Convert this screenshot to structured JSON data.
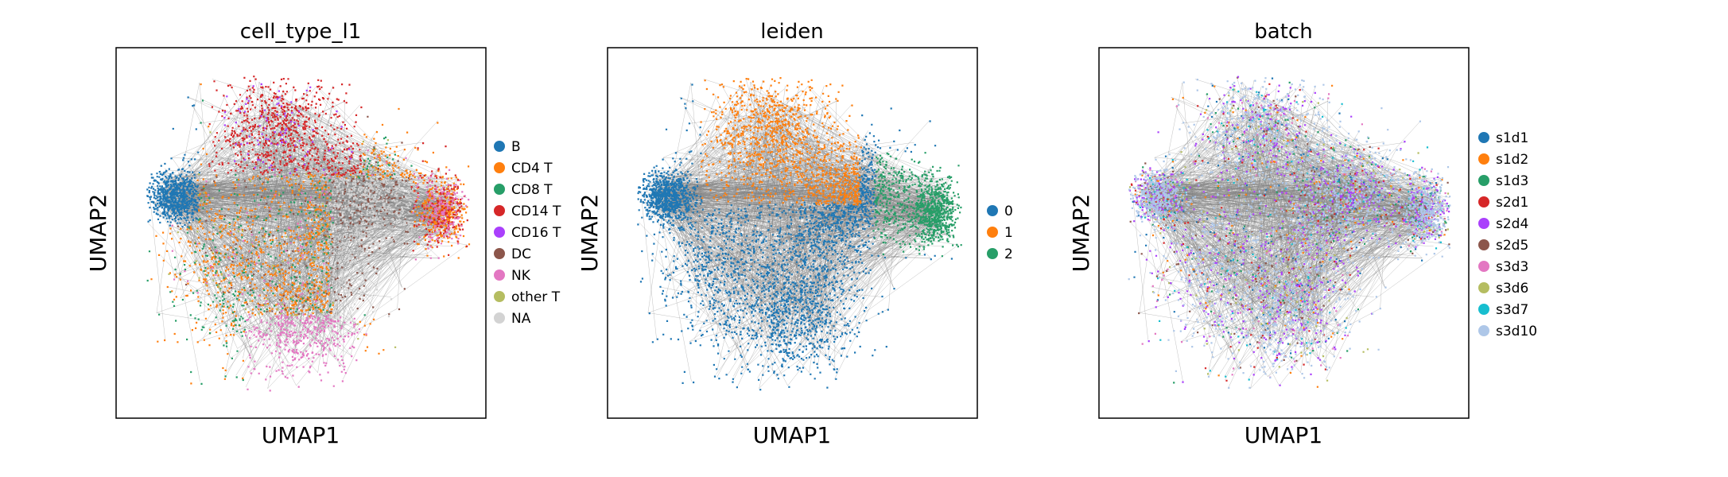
{
  "chart_data": [
    {
      "type": "scatter",
      "title": "cell_type_l1",
      "xlabel": "UMAP1",
      "ylabel": "UMAP2",
      "grid": false,
      "legend_position": "right",
      "series": [
        {
          "name": "B",
          "color": "#1f77b4"
        },
        {
          "name": "CD4 T",
          "color": "#ff7f0e"
        },
        {
          "name": "CD8 T",
          "color": "#279e68"
        },
        {
          "name": "CD14 T",
          "color": "#d62728"
        },
        {
          "name": "CD16 T",
          "color": "#aa40fc"
        },
        {
          "name": "DC",
          "color": "#8c564b"
        },
        {
          "name": "NK",
          "color": "#e377c2"
        },
        {
          "name": "other T",
          "color": "#b5bd61"
        },
        {
          "name": "NA",
          "color": "#d3d3d3"
        }
      ]
    },
    {
      "type": "scatter",
      "title": "leiden",
      "xlabel": "UMAP1",
      "ylabel": "UMAP2",
      "grid": false,
      "legend_position": "right",
      "series": [
        {
          "name": "0",
          "color": "#1f77b4"
        },
        {
          "name": "1",
          "color": "#ff7f0e"
        },
        {
          "name": "2",
          "color": "#279e68"
        }
      ]
    },
    {
      "type": "scatter",
      "title": "batch",
      "xlabel": "UMAP1",
      "ylabel": "UMAP2",
      "grid": false,
      "legend_position": "right",
      "series": [
        {
          "name": "s1d1",
          "color": "#1f77b4"
        },
        {
          "name": "s1d2",
          "color": "#ff7f0e"
        },
        {
          "name": "s1d3",
          "color": "#279e68"
        },
        {
          "name": "s2d1",
          "color": "#d62728"
        },
        {
          "name": "s2d4",
          "color": "#aa40fc"
        },
        {
          "name": "s2d5",
          "color": "#8c564b"
        },
        {
          "name": "s3d3",
          "color": "#e377c2"
        },
        {
          "name": "s3d6",
          "color": "#b5bd61"
        },
        {
          "name": "s3d7",
          "color": "#17becf"
        },
        {
          "name": "s3d10",
          "color": "#aec7e8"
        }
      ]
    }
  ],
  "style": {
    "edge_color": "#808080",
    "frame_color": "#000000"
  }
}
